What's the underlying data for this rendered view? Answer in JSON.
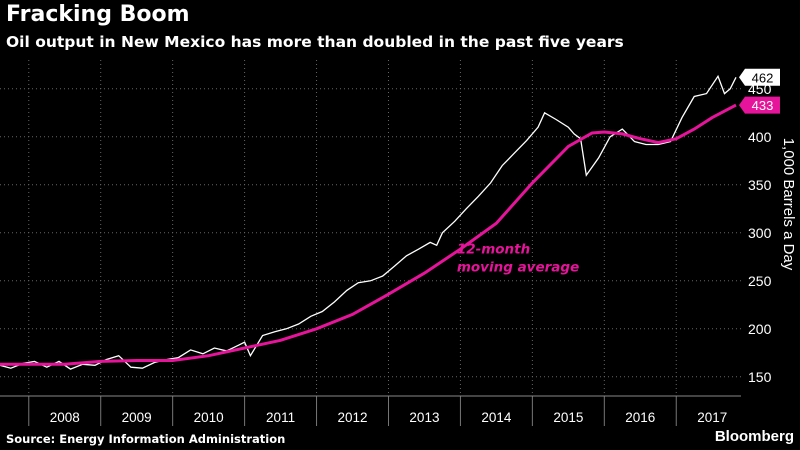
{
  "header": {
    "title": "Fracking Boom",
    "subtitle": "Oil output in New Mexico has more than doubled in the past five years"
  },
  "footer": {
    "source": "Source: Energy Information Administration",
    "brand": "Bloomberg"
  },
  "colors": {
    "background": "#000000",
    "raw_series": "#ffffff",
    "average_series": "#e6149a",
    "grid": "#666666"
  },
  "chart_data": {
    "type": "line",
    "title": "Fracking Boom",
    "subtitle": "Oil output in New Mexico has more than doubled in the past five years",
    "ylabel": "1,000 Barrels a Day",
    "xlabel": "",
    "xlim": [
      2007.6,
      2017.9
    ],
    "ylim": [
      130,
      480
    ],
    "yticks": [
      150,
      200,
      250,
      300,
      350,
      400,
      450
    ],
    "xticks": [
      "2008",
      "2009",
      "2010",
      "2011",
      "2012",
      "2013",
      "2014",
      "2015",
      "2016",
      "2017"
    ],
    "grid": true,
    "annotation": {
      "line1": "12-month",
      "line2": "moving average",
      "x": 2013.95,
      "y": 268
    },
    "end_labels": {
      "raw": "462",
      "average": "433"
    },
    "series": [
      {
        "key": "raw",
        "values": [
          [
            2007.6,
            162
          ],
          [
            2007.75,
            159
          ],
          [
            2007.92,
            164
          ],
          [
            2008.08,
            166
          ],
          [
            2008.25,
            160
          ],
          [
            2008.42,
            166
          ],
          [
            2008.58,
            158
          ],
          [
            2008.75,
            163
          ],
          [
            2008.92,
            162
          ],
          [
            2009.08,
            168
          ],
          [
            2009.25,
            172
          ],
          [
            2009.42,
            160
          ],
          [
            2009.58,
            159
          ],
          [
            2009.75,
            165
          ],
          [
            2009.92,
            168
          ],
          [
            2010.08,
            170
          ],
          [
            2010.25,
            178
          ],
          [
            2010.42,
            174
          ],
          [
            2010.58,
            180
          ],
          [
            2010.75,
            177
          ],
          [
            2010.92,
            183
          ],
          [
            2011.0,
            186
          ],
          [
            2011.08,
            172
          ],
          [
            2011.25,
            193
          ],
          [
            2011.42,
            197
          ],
          [
            2011.58,
            200
          ],
          [
            2011.75,
            205
          ],
          [
            2011.92,
            213
          ],
          [
            2012.08,
            218
          ],
          [
            2012.25,
            228
          ],
          [
            2012.42,
            240
          ],
          [
            2012.58,
            248
          ],
          [
            2012.75,
            250
          ],
          [
            2012.92,
            255
          ],
          [
            2013.08,
            265
          ],
          [
            2013.25,
            276
          ],
          [
            2013.42,
            283
          ],
          [
            2013.58,
            290
          ],
          [
            2013.67,
            287
          ],
          [
            2013.75,
            300
          ],
          [
            2013.92,
            312
          ],
          [
            2014.08,
            325
          ],
          [
            2014.25,
            338
          ],
          [
            2014.42,
            352
          ],
          [
            2014.58,
            370
          ],
          [
            2014.75,
            383
          ],
          [
            2014.92,
            396
          ],
          [
            2015.08,
            410
          ],
          [
            2015.17,
            425
          ],
          [
            2015.33,
            418
          ],
          [
            2015.5,
            410
          ],
          [
            2015.58,
            403
          ],
          [
            2015.67,
            398
          ],
          [
            2015.75,
            360
          ],
          [
            2015.92,
            378
          ],
          [
            2016.08,
            400
          ],
          [
            2016.25,
            408
          ],
          [
            2016.42,
            395
          ],
          [
            2016.58,
            392
          ],
          [
            2016.75,
            392
          ],
          [
            2016.92,
            395
          ],
          [
            2017.08,
            420
          ],
          [
            2017.25,
            442
          ],
          [
            2017.42,
            445
          ],
          [
            2017.58,
            463
          ],
          [
            2017.67,
            445
          ],
          [
            2017.75,
            450
          ],
          [
            2017.83,
            462
          ]
        ]
      },
      {
        "key": "average",
        "values": [
          [
            2007.6,
            163
          ],
          [
            2008.0,
            163
          ],
          [
            2008.5,
            163
          ],
          [
            2009.0,
            166
          ],
          [
            2009.5,
            167
          ],
          [
            2010.0,
            167
          ],
          [
            2010.5,
            172
          ],
          [
            2011.0,
            180
          ],
          [
            2011.5,
            188
          ],
          [
            2012.0,
            200
          ],
          [
            2012.5,
            215
          ],
          [
            2013.0,
            236
          ],
          [
            2013.5,
            258
          ],
          [
            2014.0,
            283
          ],
          [
            2014.5,
            310
          ],
          [
            2015.0,
            352
          ],
          [
            2015.5,
            390
          ],
          [
            2015.83,
            404
          ],
          [
            2016.0,
            405
          ],
          [
            2016.25,
            403
          ],
          [
            2016.5,
            398
          ],
          [
            2016.75,
            394
          ],
          [
            2017.0,
            398
          ],
          [
            2017.25,
            408
          ],
          [
            2017.5,
            420
          ],
          [
            2017.83,
            433
          ]
        ]
      }
    ]
  }
}
